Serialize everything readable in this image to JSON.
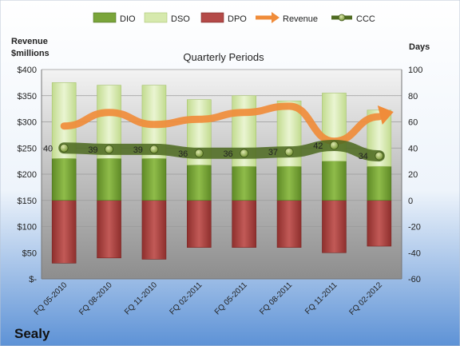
{
  "chart_data": {
    "type": "bar",
    "title": "Quarterly Periods",
    "company": "Sealy",
    "left_axis_label_line1": "Revenue",
    "left_axis_label_line2": "$millions",
    "right_axis_label": "Days",
    "categories": [
      "FQ 05-2010",
      "FQ 08-2010",
      "FQ 11-2010",
      "FQ 02-2011",
      "FQ 05-2011",
      "FQ 08-2011",
      "FQ 11-2011",
      "FQ 02-2012"
    ],
    "left_ylim": [
      0,
      400
    ],
    "right_ylim": [
      -60,
      100
    ],
    "left_ticks": [
      "$-",
      "$50",
      "$100",
      "$150",
      "$200",
      "$250",
      "$300",
      "$350",
      "$400"
    ],
    "right_ticks": [
      "-60",
      "-40",
      "-20",
      "0",
      "20",
      "40",
      "60",
      "80",
      "100"
    ],
    "grid": true,
    "legend_position": "top",
    "series": [
      {
        "name": "DIO",
        "axis": "right",
        "type": "stacked-bar",
        "color": "#7aa53a",
        "values": [
          32,
          32,
          32,
          27,
          26,
          26,
          30,
          26
        ]
      },
      {
        "name": "DSO",
        "axis": "right",
        "type": "stacked-bar",
        "color": "#d6e9ad",
        "values": [
          58,
          56,
          56,
          50,
          54,
          50,
          52,
          43
        ]
      },
      {
        "name": "DPO",
        "axis": "right",
        "type": "negative-bar",
        "color": "#b44a48",
        "values": [
          -48,
          -44,
          -45,
          -36,
          -36,
          -36,
          -40,
          -35
        ]
      },
      {
        "name": "Revenue",
        "axis": "left",
        "type": "line",
        "color": "#f08c3a",
        "values": [
          292,
          318,
          295,
          305,
          318,
          330,
          263,
          310
        ]
      },
      {
        "name": "CCC",
        "axis": "right",
        "type": "line-markers",
        "color": "#4f6b22",
        "values": [
          40,
          39,
          39,
          36,
          36,
          37,
          42,
          34
        ],
        "labels": [
          "40",
          "39",
          "39",
          "36",
          "36",
          "37",
          "42",
          "34"
        ]
      }
    ]
  }
}
